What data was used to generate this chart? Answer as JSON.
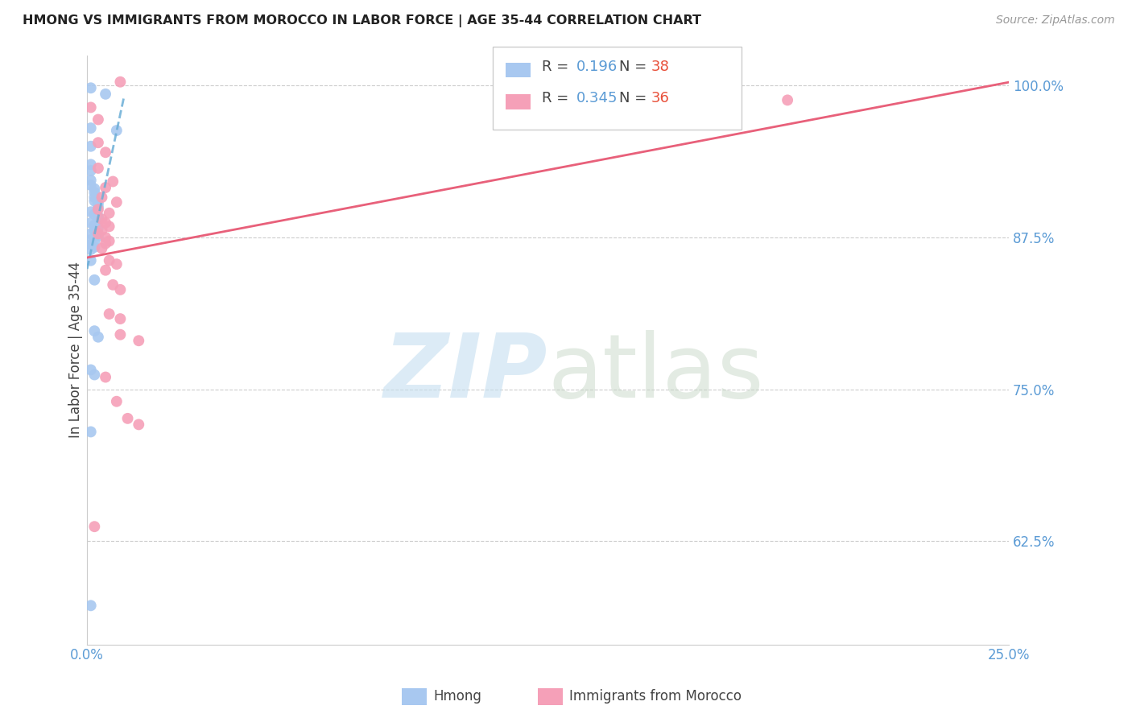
{
  "title": "HMONG VS IMMIGRANTS FROM MOROCCO IN LABOR FORCE | AGE 35-44 CORRELATION CHART",
  "source": "Source: ZipAtlas.com",
  "ylabel": "In Labor Force | Age 35-44",
  "xlim": [
    0.0,
    0.25
  ],
  "ylim": [
    0.54,
    1.025
  ],
  "xticks": [
    0.0,
    0.05,
    0.1,
    0.15,
    0.2,
    0.25
  ],
  "xticklabels": [
    "0.0%",
    "",
    "",
    "",
    "",
    "25.0%"
  ],
  "yticks": [
    0.625,
    0.75,
    0.875,
    1.0
  ],
  "yticklabels": [
    "62.5%",
    "75.0%",
    "87.5%",
    "100.0%"
  ],
  "legend_R_hmong": "0.196",
  "legend_N_hmong": "38",
  "legend_R_morocco": "0.345",
  "legend_N_morocco": "36",
  "hmong_color": "#a8c8f0",
  "morocco_color": "#f5a0b8",
  "trendline_hmong_color": "#6baed6",
  "trendline_morocco_color": "#e8607a",
  "background_color": "#ffffff",
  "hmong_scatter": [
    [
      0.001,
      0.998
    ],
    [
      0.005,
      0.993
    ],
    [
      0.001,
      0.965
    ],
    [
      0.008,
      0.963
    ],
    [
      0.001,
      0.95
    ],
    [
      0.001,
      0.935
    ],
    [
      0.001,
      0.93
    ],
    [
      0.001,
      0.922
    ],
    [
      0.001,
      0.918
    ],
    [
      0.002,
      0.915
    ],
    [
      0.002,
      0.912
    ],
    [
      0.002,
      0.908
    ],
    [
      0.002,
      0.905
    ],
    [
      0.003,
      0.903
    ],
    [
      0.003,
      0.9
    ],
    [
      0.001,
      0.896
    ],
    [
      0.002,
      0.894
    ],
    [
      0.003,
      0.892
    ],
    [
      0.003,
      0.89
    ],
    [
      0.001,
      0.887
    ],
    [
      0.002,
      0.885
    ],
    [
      0.003,
      0.883
    ],
    [
      0.002,
      0.881
    ],
    [
      0.001,
      0.878
    ],
    [
      0.003,
      0.876
    ],
    [
      0.001,
      0.873
    ],
    [
      0.002,
      0.871
    ],
    [
      0.001,
      0.869
    ],
    [
      0.002,
      0.867
    ],
    [
      0.001,
      0.865
    ],
    [
      0.001,
      0.856
    ],
    [
      0.002,
      0.84
    ],
    [
      0.002,
      0.798
    ],
    [
      0.003,
      0.793
    ],
    [
      0.001,
      0.766
    ],
    [
      0.002,
      0.762
    ],
    [
      0.001,
      0.715
    ],
    [
      0.001,
      0.572
    ]
  ],
  "morocco_scatter": [
    [
      0.009,
      1.003
    ],
    [
      0.001,
      0.982
    ],
    [
      0.003,
      0.972
    ],
    [
      0.003,
      0.953
    ],
    [
      0.005,
      0.945
    ],
    [
      0.003,
      0.932
    ],
    [
      0.007,
      0.921
    ],
    [
      0.005,
      0.916
    ],
    [
      0.004,
      0.908
    ],
    [
      0.008,
      0.904
    ],
    [
      0.003,
      0.898
    ],
    [
      0.006,
      0.895
    ],
    [
      0.004,
      0.89
    ],
    [
      0.005,
      0.887
    ],
    [
      0.006,
      0.884
    ],
    [
      0.004,
      0.881
    ],
    [
      0.003,
      0.878
    ],
    [
      0.005,
      0.875
    ],
    [
      0.006,
      0.872
    ],
    [
      0.005,
      0.87
    ],
    [
      0.004,
      0.866
    ],
    [
      0.006,
      0.856
    ],
    [
      0.008,
      0.853
    ],
    [
      0.005,
      0.848
    ],
    [
      0.007,
      0.836
    ],
    [
      0.009,
      0.832
    ],
    [
      0.006,
      0.812
    ],
    [
      0.009,
      0.808
    ],
    [
      0.009,
      0.795
    ],
    [
      0.014,
      0.79
    ],
    [
      0.005,
      0.76
    ],
    [
      0.008,
      0.74
    ],
    [
      0.011,
      0.726
    ],
    [
      0.014,
      0.721
    ],
    [
      0.002,
      0.637
    ],
    [
      0.19,
      0.988
    ]
  ]
}
